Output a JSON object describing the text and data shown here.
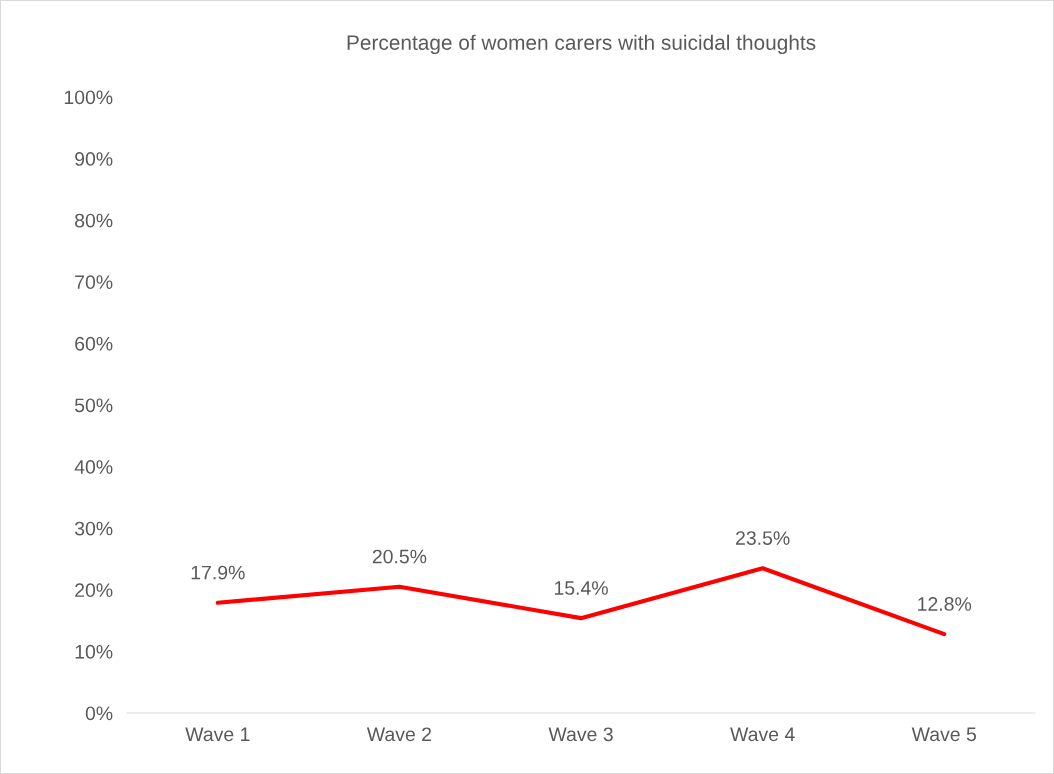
{
  "chart_data": {
    "type": "line",
    "title": "Percentage of women carers with suicidal thoughts",
    "categories": [
      "Wave 1",
      "Wave 2",
      "Wave 3",
      "Wave 4",
      "Wave 5"
    ],
    "series": [
      {
        "color": "#ff0000",
        "values": [
          17.9,
          20.5,
          15.4,
          23.5,
          12.8
        ],
        "value_labels": [
          "17.9%",
          "20.5%",
          "15.4%",
          "23.5%",
          "12.8%"
        ]
      }
    ],
    "ylim": [
      0,
      100
    ],
    "yticks": [
      {
        "value": 0,
        "label": "0%"
      },
      {
        "value": 10,
        "label": "10%"
      },
      {
        "value": 20,
        "label": "20%"
      },
      {
        "value": 30,
        "label": "30%"
      },
      {
        "value": 40,
        "label": "40%"
      },
      {
        "value": 50,
        "label": "50%"
      },
      {
        "value": 60,
        "label": "60%"
      },
      {
        "value": 70,
        "label": "70%"
      },
      {
        "value": 80,
        "label": "80%"
      },
      {
        "value": 90,
        "label": "90%"
      },
      {
        "value": 100,
        "label": "100%"
      }
    ],
    "grid": false,
    "marker": "none",
    "line_style": "solid"
  }
}
